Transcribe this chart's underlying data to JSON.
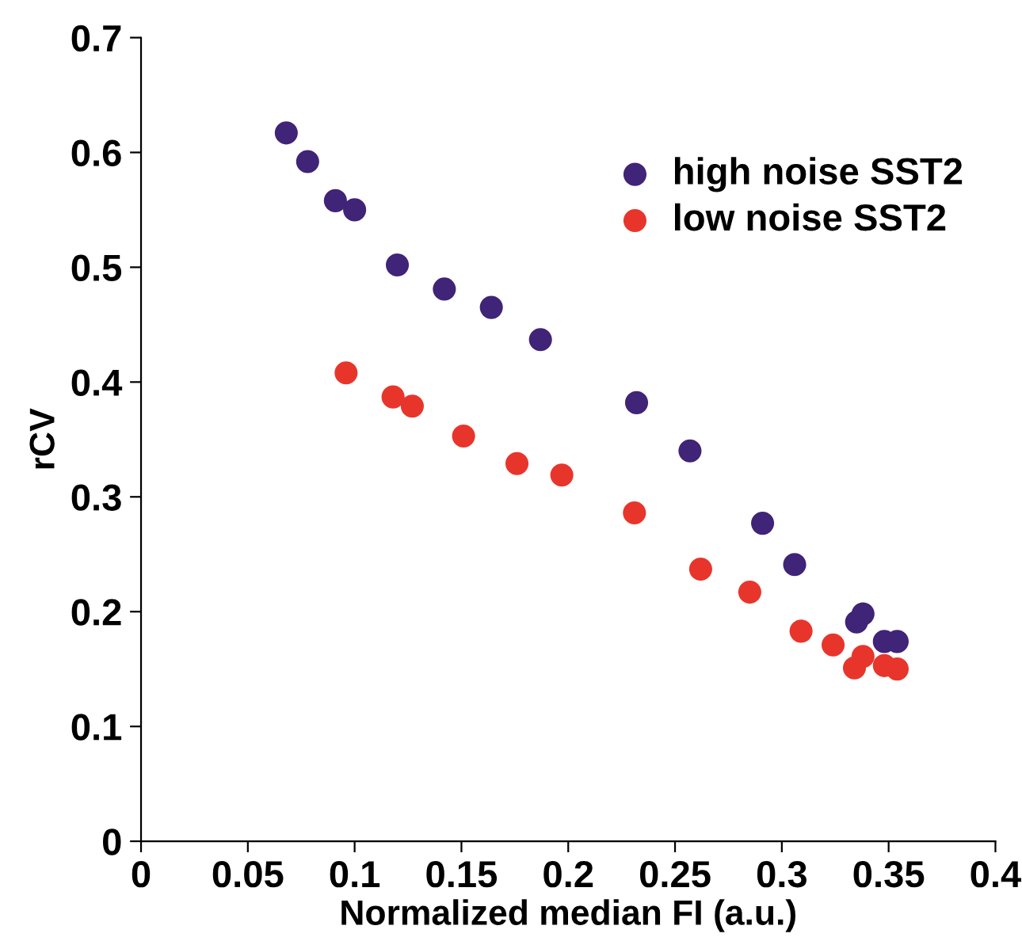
{
  "chart_data": {
    "type": "scatter",
    "xlabel": "Normalized median FI (a.u.)",
    "ylabel": "rCV",
    "xlim": [
      0,
      0.4
    ],
    "xticks": [
      0,
      0.05,
      0.1,
      0.15,
      0.2,
      0.25,
      0.3,
      0.35,
      0.4
    ],
    "ylim": [
      0,
      0.7
    ],
    "yticks": [
      0,
      0.1,
      0.2,
      0.3,
      0.4,
      0.5,
      0.6,
      0.7
    ],
    "grid": false,
    "legend": "top right",
    "marker": "circle",
    "series": [
      {
        "name": "high noise SST2",
        "color": "#3f2478",
        "x": [
          0.068,
          0.078,
          0.091,
          0.1,
          0.12,
          0.142,
          0.164,
          0.187,
          0.232,
          0.257,
          0.291,
          0.306,
          0.335,
          0.338,
          0.348,
          0.354
        ],
        "values": [
          0.617,
          0.592,
          0.558,
          0.55,
          0.502,
          0.481,
          0.465,
          0.437,
          0.382,
          0.34,
          0.277,
          0.241,
          0.191,
          0.198,
          0.174,
          0.174
        ]
      },
      {
        "name": "low noise SST2",
        "color": "#e8352b",
        "x": [
          0.096,
          0.118,
          0.127,
          0.151,
          0.176,
          0.197,
          0.231,
          0.262,
          0.285,
          0.309,
          0.324,
          0.334,
          0.338,
          0.348,
          0.351,
          0.354
        ],
        "values": [
          0.408,
          0.387,
          0.379,
          0.353,
          0.329,
          0.319,
          0.286,
          0.237,
          0.217,
          0.183,
          0.171,
          0.151,
          0.161,
          0.153,
          null,
          0.15
        ]
      }
    ]
  }
}
